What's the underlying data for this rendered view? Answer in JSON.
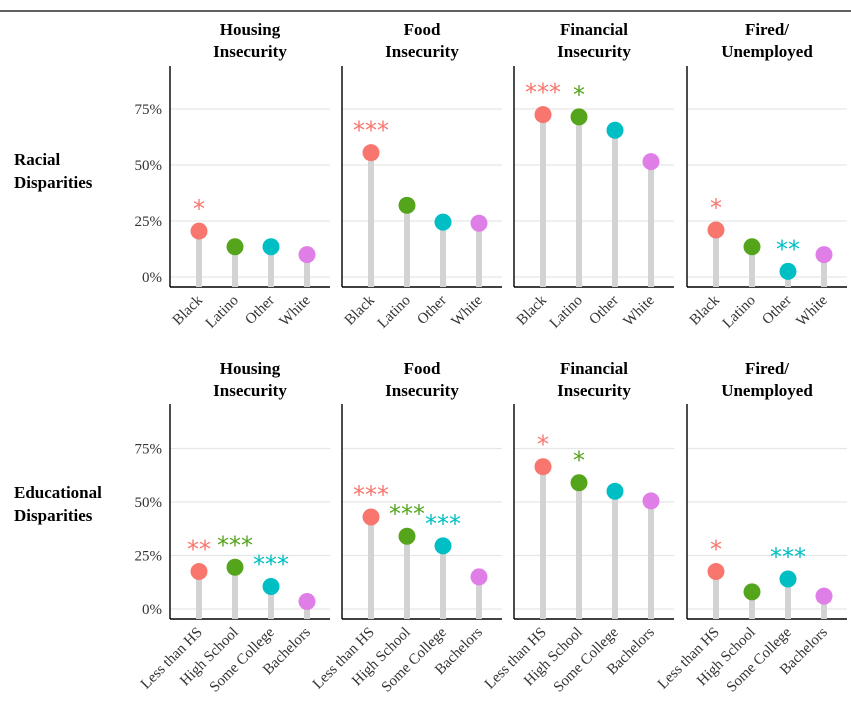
{
  "colors": {
    "group1": "#f8766d",
    "group2": "#55a51c",
    "group3": "#00bfc4",
    "group4": "#e07ee8",
    "stem": "#d3d3d3",
    "grid": "#e6e6e6"
  },
  "chart_data": [
    {
      "type": "lollipop",
      "row_label": [
        "Racial",
        "Disparities"
      ],
      "yticks": [
        "0%",
        "25%",
        "50%",
        "75%"
      ],
      "ylim": [
        0,
        0.8
      ],
      "categories": [
        "Black",
        "Latino",
        "Other",
        "White"
      ],
      "panels": [
        {
          "title": [
            "Housing",
            "Insecurity"
          ],
          "values": [
            0.205,
            0.135,
            0.135,
            0.1
          ],
          "stars": [
            "*",
            "",
            "",
            ""
          ]
        },
        {
          "title": [
            "Food",
            "Insecurity"
          ],
          "values": [
            0.555,
            0.32,
            0.245,
            0.24
          ],
          "stars": [
            "***",
            "",
            "",
            ""
          ]
        },
        {
          "title": [
            "Financial",
            "Insecurity"
          ],
          "values": [
            0.725,
            0.715,
            0.655,
            0.515
          ],
          "stars": [
            "***",
            "*",
            "",
            ""
          ]
        },
        {
          "title": [
            "Fired/",
            "Unemployed"
          ],
          "values": [
            0.21,
            0.135,
            0.025,
            0.1
          ],
          "stars": [
            "*",
            "",
            "**",
            ""
          ]
        }
      ]
    },
    {
      "type": "lollipop",
      "row_label": [
        "Educational",
        "Disparities"
      ],
      "yticks": [
        "0%",
        "25%",
        "50%",
        "75%"
      ],
      "ylim": [
        0,
        0.8
      ],
      "categories": [
        "Less than HS",
        "High School",
        "Some College",
        "Bachelors"
      ],
      "panels": [
        {
          "title": [
            "Housing",
            "Insecurity"
          ],
          "values": [
            0.175,
            0.195,
            0.105,
            0.035
          ],
          "stars": [
            "**",
            "***",
            "***",
            ""
          ]
        },
        {
          "title": [
            "Food",
            "Insecurity"
          ],
          "values": [
            0.43,
            0.34,
            0.295,
            0.15
          ],
          "stars": [
            "***",
            "***",
            "***",
            ""
          ]
        },
        {
          "title": [
            "Financial",
            "Insecurity"
          ],
          "values": [
            0.665,
            0.59,
            0.55,
            0.505
          ],
          "stars": [
            "*",
            "*",
            "",
            ""
          ]
        },
        {
          "title": [
            "Fired/",
            "Unemployed"
          ],
          "values": [
            0.175,
            0.08,
            0.14,
            0.06
          ],
          "stars": [
            "*",
            "",
            "***",
            ""
          ]
        }
      ]
    }
  ]
}
